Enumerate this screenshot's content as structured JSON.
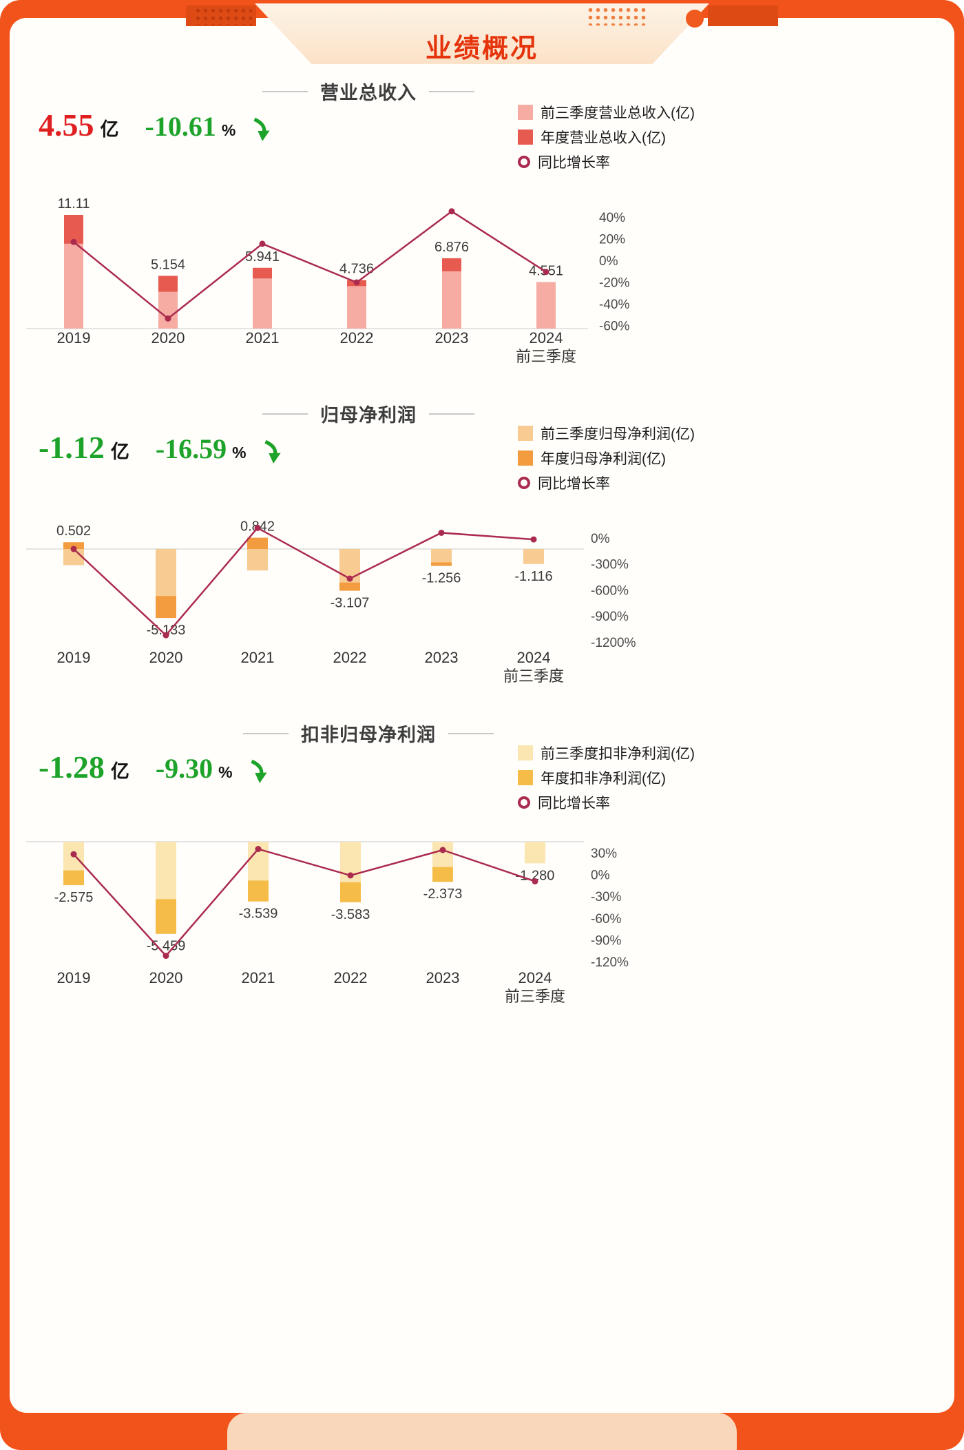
{
  "page": {
    "title": "业绩概况"
  },
  "colors": {
    "frame": "#f1531a",
    "panel_bg": "#fffefb",
    "line": "#ab2b4f",
    "green": "#1ea32a",
    "red": "#e02020",
    "axis_text": "#4a4a4a",
    "label_text": "#3a3a3a"
  },
  "charts": [
    {
      "title": "营业总收入",
      "stat": {
        "value": "4.55",
        "unit": "亿",
        "pct": "-10.61",
        "pct_unit": "%",
        "value_color": "#e02020",
        "pct_color": "#1ea32a",
        "trend_icon": "down-arrow"
      },
      "bar_colors": {
        "ytd": "#f6aba3",
        "annual": "#e65a50"
      },
      "legend": [
        {
          "label": "前三季度营业总收入(亿)",
          "swatch": "square",
          "color": "#f6aba3"
        },
        {
          "label": "年度营业总收入(亿)",
          "swatch": "square",
          "color": "#e65a50"
        },
        {
          "label": "同比增长率",
          "swatch": "ring",
          "color": "#ab2b4f"
        }
      ]
    },
    {
      "title": "归母净利润",
      "stat": {
        "value": "-1.12",
        "unit": "亿",
        "pct": "-16.59",
        "pct_unit": "%",
        "value_color": "#1ea32a",
        "pct_color": "#1ea32a",
        "trend_icon": "down-arrow"
      },
      "bar_colors": {
        "ytd": "#f8cb92",
        "annual": "#f29b3f"
      },
      "legend": [
        {
          "label": "前三季度归母净利润(亿)",
          "swatch": "square",
          "color": "#f8cb92"
        },
        {
          "label": "年度归母净利润(亿)",
          "swatch": "square",
          "color": "#f29b3f"
        },
        {
          "label": "同比增长率",
          "swatch": "ring",
          "color": "#ab2b4f"
        }
      ]
    },
    {
      "title": "扣非归母净利润",
      "stat": {
        "value": "-1.28",
        "unit": "亿",
        "pct": "-9.30",
        "pct_unit": "%",
        "value_color": "#1ea32a",
        "pct_color": "#1ea32a",
        "trend_icon": "down-arrow"
      },
      "bar_colors": {
        "ytd": "#fbe5b0",
        "annual": "#f5bc48"
      },
      "legend": [
        {
          "label": "前三季度扣非净利润(亿)",
          "swatch": "square",
          "color": "#fbe5b0"
        },
        {
          "label": "年度扣非净利润(亿)",
          "swatch": "square",
          "color": "#f5bc48"
        },
        {
          "label": "同比增长率",
          "swatch": "ring",
          "color": "#ab2b4f"
        }
      ]
    }
  ],
  "chart_data": [
    {
      "type": "bar+line",
      "title": "营业总收入",
      "categories": [
        "2019",
        "2020",
        "2021",
        "2022",
        "2023",
        "2024\n前三季度"
      ],
      "series": [
        {
          "name": "前三季度营业总收入(亿)",
          "type": "bar",
          "values": [
            8.3,
            3.6,
            4.9,
            4.15,
            5.6,
            4.551
          ]
        },
        {
          "name": "年度营业总收入(亿)",
          "type": "bar",
          "values": [
            11.11,
            5.154,
            5.941,
            4.736,
            6.876,
            null
          ]
        },
        {
          "name": "同比增长率(%)",
          "type": "line",
          "values": [
            17,
            -53.6,
            15.3,
            -20.3,
            45.2,
            -10.61
          ]
        }
      ],
      "bar_labels": [
        "11.11",
        "5.154",
        "5.941",
        "4.736",
        "6.876",
        "4.551"
      ],
      "line_axis_ticks": [
        {
          "label": "40%",
          "value": 40
        },
        {
          "label": "20%",
          "value": 20
        },
        {
          "label": "0%",
          "value": 0
        },
        {
          "label": "-20%",
          "value": -20
        },
        {
          "label": "-40%",
          "value": -40
        },
        {
          "label": "-60%",
          "value": -60
        }
      ],
      "legend_position": "top-right",
      "grid": false
    },
    {
      "type": "bar+line",
      "title": "归母净利润",
      "categories": [
        "2019",
        "2020",
        "2021",
        "2022",
        "2023",
        "2024\n前三季度"
      ],
      "series": [
        {
          "name": "前三季度归母净利润(亿)",
          "type": "bar",
          "values": [
            -1.2,
            -3.5,
            -1.6,
            -2.5,
            -1.0,
            -1.116
          ]
        },
        {
          "name": "年度归母净利润(亿)",
          "type": "bar",
          "values": [
            0.502,
            -5.133,
            0.842,
            -3.107,
            -1.256,
            null
          ]
        },
        {
          "name": "同比增长率(%)",
          "type": "line",
          "values": [
            -127,
            -1122,
            116,
            -469,
            60,
            -16.59
          ]
        }
      ],
      "bar_labels": [
        "0.502",
        "-5.133",
        "0.842",
        "-3.107",
        "-1.256",
        "-1.116"
      ],
      "line_axis_ticks": [
        {
          "label": "0%",
          "value": 0
        },
        {
          "label": "-300%",
          "value": -300
        },
        {
          "label": "-600%",
          "value": -600
        },
        {
          "label": "-900%",
          "value": -900
        },
        {
          "label": "-1200%",
          "value": -1200
        }
      ],
      "legend_position": "top-right",
      "grid": false
    },
    {
      "type": "bar+line",
      "title": "扣非归母净利润",
      "categories": [
        "2019",
        "2020",
        "2021",
        "2022",
        "2023",
        "2024\n前三季度"
      ],
      "series": [
        {
          "name": "前三季度扣非净利润(亿)",
          "type": "bar",
          "values": [
            -1.7,
            -3.4,
            -2.3,
            -2.4,
            -1.5,
            -1.28
          ]
        },
        {
          "name": "年度扣非净利润(亿)",
          "type": "bar",
          "values": [
            -2.575,
            -5.459,
            -3.539,
            -3.583,
            -2.373,
            null
          ]
        },
        {
          "name": "同比增长率(%)",
          "type": "line",
          "values": [
            28,
            -112,
            35.2,
            -1.2,
            33.8,
            -9.3
          ]
        }
      ],
      "bar_labels": [
        "-2.575",
        "-5.459",
        "-3.539",
        "-3.583",
        "-2.373",
        "-1.280"
      ],
      "line_axis_ticks": [
        {
          "label": "30%",
          "value": 30
        },
        {
          "label": "0%",
          "value": 0
        },
        {
          "label": "-30%",
          "value": -30
        },
        {
          "label": "-60%",
          "value": -60
        },
        {
          "label": "-90%",
          "value": -90
        },
        {
          "label": "-120%",
          "value": -120
        }
      ],
      "legend_position": "top-right",
      "grid": false
    }
  ]
}
